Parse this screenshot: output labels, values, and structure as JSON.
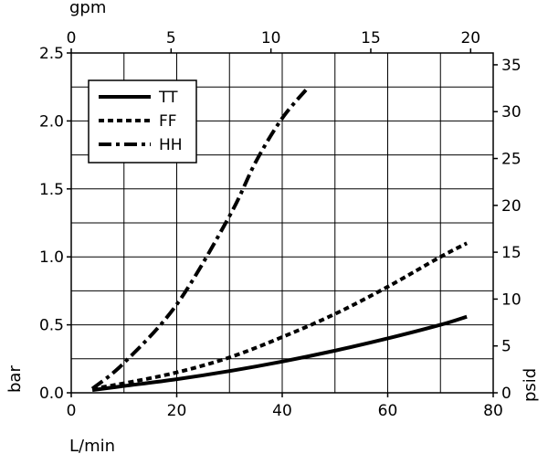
{
  "chart_data": {
    "type": "line",
    "title": "",
    "xlabel": "L/min",
    "ylabel": "bar",
    "x2label": "gpm",
    "y2label": "psid",
    "xlim": [
      0,
      80
    ],
    "ylim": [
      0,
      2.5
    ],
    "x2lim": [
      0,
      21.13
    ],
    "y2lim": [
      0,
      36.26
    ],
    "xticks": [
      "0",
      "20",
      "40",
      "60",
      "80"
    ],
    "yticks": [
      "0.0",
      "0.5",
      "1.0",
      "1.5",
      "2.0",
      "2.5"
    ],
    "x2ticks": [
      "0",
      "5",
      "10",
      "15",
      "20"
    ],
    "y2ticks": [
      "0",
      "5",
      "10",
      "15",
      "20",
      "25",
      "30",
      "35"
    ],
    "grid": true,
    "legend_position": "top-left",
    "series": [
      {
        "name": "TT",
        "style": "solid",
        "x": [
          4,
          10,
          20,
          30,
          40,
          50,
          60,
          70,
          75
        ],
        "values": [
          0.02,
          0.05,
          0.1,
          0.16,
          0.23,
          0.31,
          0.4,
          0.5,
          0.56
        ]
      },
      {
        "name": "FF",
        "style": "dotted",
        "x": [
          4,
          10,
          20,
          30,
          40,
          50,
          60,
          70,
          75
        ],
        "values": [
          0.03,
          0.07,
          0.15,
          0.26,
          0.41,
          0.58,
          0.78,
          1.0,
          1.1
        ]
      },
      {
        "name": "HH",
        "style": "dashdot",
        "x": [
          4,
          10,
          20,
          30,
          35,
          40,
          45
        ],
        "values": [
          0.03,
          0.22,
          0.65,
          1.3,
          1.7,
          2.02,
          2.25
        ]
      }
    ]
  }
}
